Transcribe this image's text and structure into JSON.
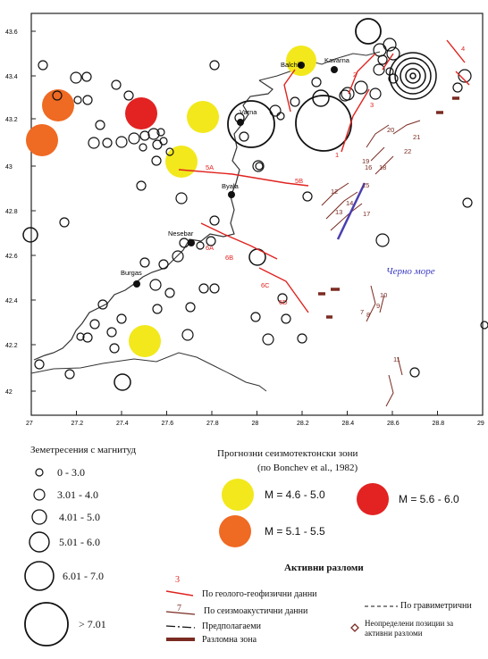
{
  "map": {
    "lat_ticks": [
      "43.6",
      "43.4",
      "43.2",
      "43",
      "42.8",
      "42.6",
      "42.4",
      "42.2",
      "42"
    ],
    "lon_ticks": [
      "27",
      "27.2",
      "27.4",
      "27.6",
      "27.8",
      "28",
      "28.2",
      "28.4",
      "28.6",
      "28.8",
      "29"
    ],
    "cities": [
      "Balchik",
      "Kavarna",
      "Varna",
      "Byala",
      "Nesebar",
      "Burgas"
    ],
    "fault_numbers": [
      "1",
      "2",
      "3",
      "4",
      "5A",
      "5B",
      "6A",
      "6B",
      "6C",
      "6D",
      "7",
      "8",
      "9",
      "10",
      "11",
      "12",
      "13",
      "14",
      "15",
      "16",
      "17",
      "18",
      "19",
      "20",
      "21",
      "22"
    ],
    "sea_label": "Черно море",
    "colors": {
      "yellow": "#f2e81c",
      "red": "#e32222",
      "orange": "#ef6a22",
      "fault_red": "#e0231f",
      "fault_brown": "#7a2b22",
      "fault_blue": "#4a3fb0"
    }
  },
  "legend": {
    "magnitude_title": "Земетресения с магнитуд",
    "magnitude_classes": [
      "0 - 3.0",
      "3.01 - 4.0",
      "4.01 - 5.0",
      "5.01 - 6.0",
      "6.01 - 7.0",
      "> 7.01"
    ],
    "zones_title": "Прогнозни сеизмотектонски зони",
    "zones_subtitle": "(по Bonchev et al., 1982)",
    "zones": [
      {
        "label": "M = 4.6 - 5.0",
        "color": "#f2e81c"
      },
      {
        "label": "M = 5.6 - 6.0",
        "color": "#e32222"
      },
      {
        "label": "M = 5.1 - 5.5",
        "color": "#ef6a22"
      }
    ],
    "faults_title": "Активни разломи",
    "fault_items": [
      {
        "key": "3",
        "label": "По геолого-геофизични данни"
      },
      {
        "key": "7",
        "label": "По сеизмоакустични данни"
      },
      {
        "key": "",
        "label": "По гравиметрични"
      },
      {
        "key": "",
        "label": "Предполагаеми"
      },
      {
        "key": "",
        "label": "Разломна зона"
      },
      {
        "key": "",
        "label": "Неопределени позиции за активни разломи"
      }
    ]
  }
}
